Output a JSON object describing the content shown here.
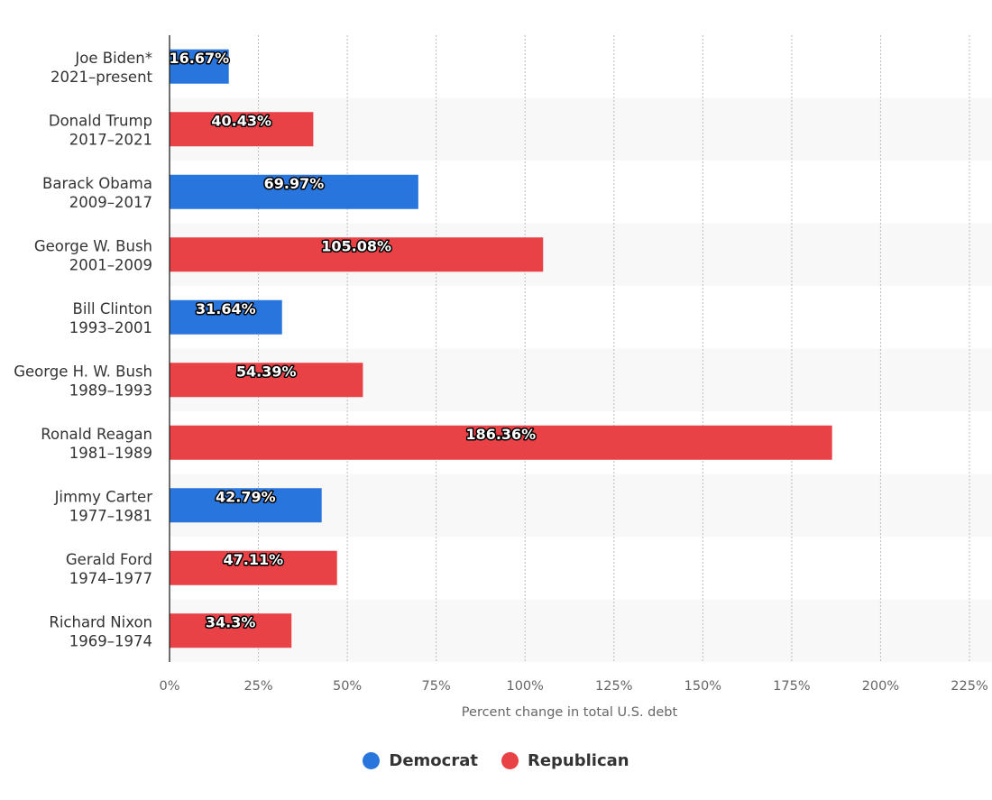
{
  "chart_data": {
    "type": "bar",
    "orientation": "horizontal",
    "categories": [
      [
        "Joe Biden*",
        "2021–present"
      ],
      [
        "Donald Trump",
        "2017–2021"
      ],
      [
        "Barack Obama",
        "2009–2017"
      ],
      [
        "George W. Bush",
        "2001–2009"
      ],
      [
        "Bill Clinton",
        "1993–2001"
      ],
      [
        "George H. W. Bush",
        "1989–1993"
      ],
      [
        "Ronald Reagan",
        "1981–1989"
      ],
      [
        "Jimmy Carter",
        "1977–1981"
      ],
      [
        "Gerald Ford",
        "1974–1977"
      ],
      [
        "Richard Nixon",
        "1969–1974"
      ]
    ],
    "values": [
      16.67,
      40.43,
      69.97,
      105.08,
      31.64,
      54.39,
      186.36,
      42.79,
      47.11,
      34.3
    ],
    "value_labels": [
      "16.67%",
      "40.43%",
      "69.97%",
      "105.08%",
      "31.64%",
      "54.39%",
      "186.36%",
      "42.79%",
      "47.11%",
      "34.3%"
    ],
    "party": [
      "Democrat",
      "Republican",
      "Democrat",
      "Republican",
      "Democrat",
      "Republican",
      "Republican",
      "Democrat",
      "Republican",
      "Republican"
    ],
    "xlabel": "Percent change in total U.S. debt",
    "xlim": [
      0,
      225
    ],
    "xticks": [
      0,
      25,
      50,
      75,
      100,
      125,
      150,
      175,
      200,
      225
    ],
    "xtick_labels": [
      "0%",
      "25%",
      "50%",
      "75%",
      "100%",
      "125%",
      "150%",
      "175%",
      "200%",
      "225%"
    ],
    "grid": true,
    "legend_position": "bottom-center",
    "legend": [
      {
        "name": "Democrat",
        "color": "#2876dd"
      },
      {
        "name": "Republican",
        "color": "#e84146"
      }
    ]
  }
}
